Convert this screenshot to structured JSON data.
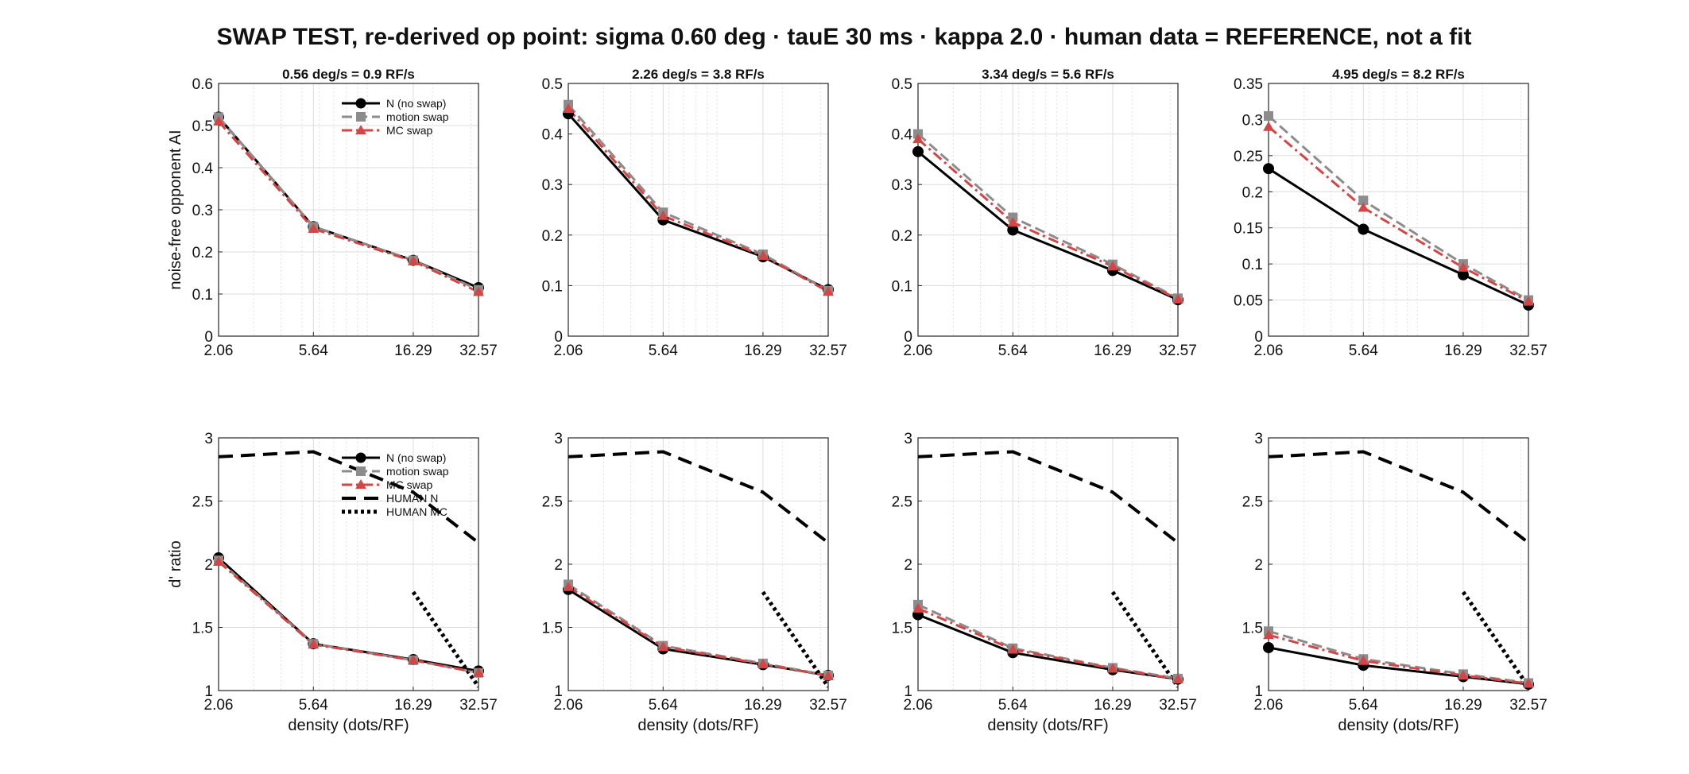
{
  "figure": {
    "title": "SWAP TEST, re-derived op point: sigma 0.60 deg · tauE 30 ms · kappa 2.0 · human data = REFERENCE, not a fit"
  },
  "colors": {
    "N": "#000000",
    "motion": "#8c8c8c",
    "MC": "#d64545",
    "human": "#000000",
    "grid": "#dcdcdc",
    "axis": "#262626"
  },
  "chart_data": [
    {
      "type": "line",
      "row": 0,
      "col": 0,
      "title": "0.56 deg/s = 0.9 RF/s",
      "ylabel": "noise-free opponent AI",
      "xlabel": "",
      "x_scale": "log",
      "xlim": [
        2.06,
        32.57
      ],
      "xticks": [
        2.06,
        5.64,
        16.29,
        32.57
      ],
      "xtick_labels": [
        "2.06",
        "5.64",
        "16.29",
        "32.57"
      ],
      "ylim": [
        0,
        0.6
      ],
      "yticks": [
        0,
        0.1,
        0.2,
        0.3,
        0.4,
        0.5,
        0.6
      ],
      "ytick_labels": [
        "0",
        "0.1",
        "0.2",
        "0.3",
        "0.4",
        "0.5",
        "0.6"
      ],
      "grid": true,
      "legend": "top-right",
      "x": [
        2.06,
        5.64,
        16.29,
        32.57
      ],
      "series": [
        {
          "name": "N (no swap)",
          "style": "N",
          "values": [
            0.52,
            0.26,
            0.18,
            0.115
          ]
        },
        {
          "name": "motion swap",
          "style": "motion",
          "values": [
            0.52,
            0.26,
            0.18,
            0.11
          ]
        },
        {
          "name": "MC swap",
          "style": "MC",
          "values": [
            0.51,
            0.255,
            0.178,
            0.105
          ]
        }
      ]
    },
    {
      "type": "line",
      "row": 0,
      "col": 1,
      "title": "2.26 deg/s = 3.8 RF/s",
      "ylabel": "",
      "xlabel": "",
      "x_scale": "log",
      "xlim": [
        2.06,
        32.57
      ],
      "xticks": [
        2.06,
        5.64,
        16.29,
        32.57
      ],
      "xtick_labels": [
        "2.06",
        "5.64",
        "16.29",
        "32.57"
      ],
      "ylim": [
        0,
        0.5
      ],
      "yticks": [
        0,
        0.1,
        0.2,
        0.3,
        0.4,
        0.5
      ],
      "ytick_labels": [
        "0",
        "0.1",
        "0.2",
        "0.3",
        "0.4",
        "0.5"
      ],
      "grid": true,
      "legend": "none",
      "x": [
        2.06,
        5.64,
        16.29,
        32.57
      ],
      "series": [
        {
          "name": "N (no swap)",
          "style": "N",
          "values": [
            0.44,
            0.23,
            0.157,
            0.092
          ]
        },
        {
          "name": "motion swap",
          "style": "motion",
          "values": [
            0.458,
            0.245,
            0.162,
            0.09
          ]
        },
        {
          "name": "MC swap",
          "style": "MC",
          "values": [
            0.45,
            0.238,
            0.159,
            0.088
          ]
        }
      ]
    },
    {
      "type": "line",
      "row": 0,
      "col": 2,
      "title": "3.34 deg/s = 5.6 RF/s",
      "ylabel": "",
      "xlabel": "",
      "x_scale": "log",
      "xlim": [
        2.06,
        32.57
      ],
      "xticks": [
        2.06,
        5.64,
        16.29,
        32.57
      ],
      "xtick_labels": [
        "2.06",
        "5.64",
        "16.29",
        "32.57"
      ],
      "ylim": [
        0,
        0.5
      ],
      "yticks": [
        0,
        0.1,
        0.2,
        0.3,
        0.4,
        0.5
      ],
      "ytick_labels": [
        "0",
        "0.1",
        "0.2",
        "0.3",
        "0.4",
        "0.5"
      ],
      "grid": true,
      "legend": "none",
      "x": [
        2.06,
        5.64,
        16.29,
        32.57
      ],
      "series": [
        {
          "name": "N (no swap)",
          "style": "N",
          "values": [
            0.365,
            0.21,
            0.13,
            0.072
          ]
        },
        {
          "name": "motion swap",
          "style": "motion",
          "values": [
            0.4,
            0.235,
            0.142,
            0.075
          ]
        },
        {
          "name": "MC swap",
          "style": "MC",
          "values": [
            0.39,
            0.225,
            0.138,
            0.073
          ]
        }
      ]
    },
    {
      "type": "line",
      "row": 0,
      "col": 3,
      "title": "4.95 deg/s = 8.2 RF/s",
      "ylabel": "",
      "xlabel": "",
      "x_scale": "log",
      "xlim": [
        2.06,
        32.57
      ],
      "xticks": [
        2.06,
        5.64,
        16.29,
        32.57
      ],
      "xtick_labels": [
        "2.06",
        "5.64",
        "16.29",
        "32.57"
      ],
      "ylim": [
        0,
        0.35
      ],
      "yticks": [
        0,
        0.05,
        0.1,
        0.15,
        0.2,
        0.25,
        0.3,
        0.35
      ],
      "ytick_labels": [
        "0",
        "0.05",
        "0.1",
        "0.15",
        "0.2",
        "0.25",
        "0.3",
        "0.35"
      ],
      "grid": true,
      "legend": "none",
      "x": [
        2.06,
        5.64,
        16.29,
        32.57
      ],
      "series": [
        {
          "name": "N (no swap)",
          "style": "N",
          "values": [
            0.232,
            0.148,
            0.085,
            0.043
          ]
        },
        {
          "name": "motion swap",
          "style": "motion",
          "values": [
            0.305,
            0.188,
            0.1,
            0.05
          ]
        },
        {
          "name": "MC swap",
          "style": "MC",
          "values": [
            0.29,
            0.178,
            0.095,
            0.048
          ]
        }
      ]
    },
    {
      "type": "line",
      "row": 1,
      "col": 0,
      "title": "",
      "ylabel": "d' ratio",
      "xlabel": "density (dots/RF)",
      "x_scale": "log",
      "xlim": [
        2.06,
        32.57
      ],
      "xticks": [
        2.06,
        5.64,
        16.29,
        32.57
      ],
      "xtick_labels": [
        "2.06",
        "5.64",
        "16.29",
        "32.57"
      ],
      "ylim": [
        1,
        3
      ],
      "yticks": [
        1,
        1.5,
        2,
        2.5,
        3
      ],
      "ytick_labels": [
        "1",
        "1.5",
        "2",
        "2.5",
        "3"
      ],
      "grid": true,
      "legend": "top-right",
      "x": [
        2.06,
        5.64,
        16.29,
        32.57
      ],
      "series": [
        {
          "name": "N (no swap)",
          "style": "N",
          "values": [
            2.05,
            1.37,
            1.245,
            1.155
          ]
        },
        {
          "name": "motion swap",
          "style": "motion",
          "values": [
            2.03,
            1.37,
            1.24,
            1.14
          ]
        },
        {
          "name": "MC swap",
          "style": "MC",
          "values": [
            2.02,
            1.365,
            1.24,
            1.14
          ]
        },
        {
          "name": "HUMAN N",
          "style": "humanN",
          "x": [
            2.06,
            5.64,
            16.29,
            32.57
          ],
          "values": [
            2.85,
            2.89,
            2.57,
            2.17
          ]
        },
        {
          "name": "HUMAN MC",
          "style": "humanMC",
          "x": [
            16.29,
            32.57
          ],
          "values": [
            1.78,
            1.03
          ]
        }
      ]
    },
    {
      "type": "line",
      "row": 1,
      "col": 1,
      "title": "",
      "ylabel": "",
      "xlabel": "density (dots/RF)",
      "x_scale": "log",
      "xlim": [
        2.06,
        32.57
      ],
      "xticks": [
        2.06,
        5.64,
        16.29,
        32.57
      ],
      "xtick_labels": [
        "2.06",
        "5.64",
        "16.29",
        "32.57"
      ],
      "ylim": [
        1,
        3
      ],
      "yticks": [
        1,
        1.5,
        2,
        2.5,
        3
      ],
      "ytick_labels": [
        "1",
        "1.5",
        "2",
        "2.5",
        "3"
      ],
      "grid": true,
      "legend": "none",
      "x": [
        2.06,
        5.64,
        16.29,
        32.57
      ],
      "series": [
        {
          "name": "N (no swap)",
          "style": "N",
          "values": [
            1.8,
            1.33,
            1.205,
            1.12
          ]
        },
        {
          "name": "motion swap",
          "style": "motion",
          "values": [
            1.84,
            1.355,
            1.215,
            1.12
          ]
        },
        {
          "name": "MC swap",
          "style": "MC",
          "values": [
            1.82,
            1.345,
            1.21,
            1.115
          ]
        },
        {
          "name": "HUMAN N",
          "style": "humanN",
          "x": [
            2.06,
            5.64,
            16.29,
            32.57
          ],
          "values": [
            2.85,
            2.89,
            2.57,
            2.17
          ]
        },
        {
          "name": "HUMAN MC",
          "style": "humanMC",
          "x": [
            16.29,
            32.57
          ],
          "values": [
            1.78,
            1.03
          ]
        }
      ]
    },
    {
      "type": "line",
      "row": 1,
      "col": 2,
      "title": "",
      "ylabel": "",
      "xlabel": "density (dots/RF)",
      "x_scale": "log",
      "xlim": [
        2.06,
        32.57
      ],
      "xticks": [
        2.06,
        5.64,
        16.29,
        32.57
      ],
      "xtick_labels": [
        "2.06",
        "5.64",
        "16.29",
        "32.57"
      ],
      "ylim": [
        1,
        3
      ],
      "yticks": [
        1,
        1.5,
        2,
        2.5,
        3
      ],
      "ytick_labels": [
        "1",
        "1.5",
        "2",
        "2.5",
        "3"
      ],
      "grid": true,
      "legend": "none",
      "x": [
        2.06,
        5.64,
        16.29,
        32.57
      ],
      "series": [
        {
          "name": "N (no swap)",
          "style": "N",
          "values": [
            1.6,
            1.3,
            1.165,
            1.09
          ]
        },
        {
          "name": "motion swap",
          "style": "motion",
          "values": [
            1.68,
            1.335,
            1.18,
            1.095
          ]
        },
        {
          "name": "MC swap",
          "style": "MC",
          "values": [
            1.65,
            1.325,
            1.175,
            1.09
          ]
        },
        {
          "name": "HUMAN N",
          "style": "humanN",
          "x": [
            2.06,
            5.64,
            16.29,
            32.57
          ],
          "values": [
            2.85,
            2.89,
            2.57,
            2.17
          ]
        },
        {
          "name": "HUMAN MC",
          "style": "humanMC",
          "x": [
            16.29,
            32.57
          ],
          "values": [
            1.78,
            1.03
          ]
        }
      ]
    },
    {
      "type": "line",
      "row": 1,
      "col": 3,
      "title": "",
      "ylabel": "",
      "xlabel": "density (dots/RF)",
      "x_scale": "log",
      "xlim": [
        2.06,
        32.57
      ],
      "xticks": [
        2.06,
        5.64,
        16.29,
        32.57
      ],
      "xtick_labels": [
        "2.06",
        "5.64",
        "16.29",
        "32.57"
      ],
      "ylim": [
        1,
        3
      ],
      "yticks": [
        1,
        1.5,
        2,
        2.5,
        3
      ],
      "ytick_labels": [
        "1",
        "1.5",
        "2",
        "2.5",
        "3"
      ],
      "grid": true,
      "legend": "none",
      "x": [
        2.06,
        5.64,
        16.29,
        32.57
      ],
      "series": [
        {
          "name": "N (no swap)",
          "style": "N",
          "values": [
            1.34,
            1.2,
            1.11,
            1.05
          ]
        },
        {
          "name": "motion swap",
          "style": "motion",
          "values": [
            1.47,
            1.25,
            1.13,
            1.06
          ]
        },
        {
          "name": "MC swap",
          "style": "MC",
          "values": [
            1.44,
            1.235,
            1.12,
            1.055
          ]
        },
        {
          "name": "HUMAN N",
          "style": "humanN",
          "x": [
            2.06,
            5.64,
            16.29,
            32.57
          ],
          "values": [
            2.85,
            2.89,
            2.57,
            2.17
          ]
        },
        {
          "name": "HUMAN MC",
          "style": "humanMC",
          "x": [
            16.29,
            32.57
          ],
          "values": [
            1.78,
            1.03
          ]
        }
      ]
    }
  ]
}
